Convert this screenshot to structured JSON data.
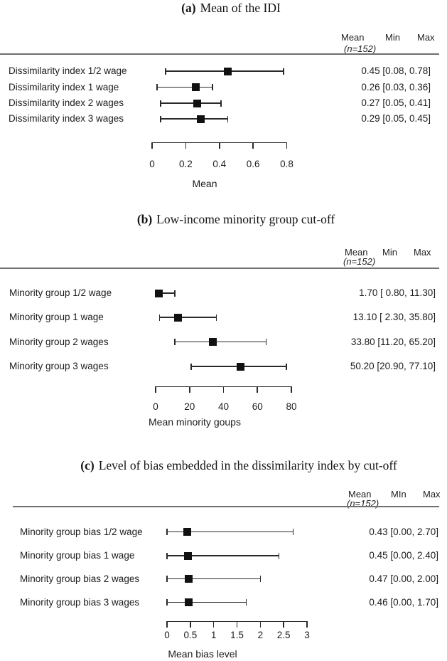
{
  "figure": {
    "background": "#ffffff",
    "text_color": "#1a1a1a",
    "marker_color": "#111111",
    "rule_color": "#6f6f6f"
  },
  "chart_data": [
    {
      "type": "forest",
      "panel_letter": "(a)",
      "title": "Mean of the IDI",
      "columns": {
        "mean": "Mean",
        "n": "(n=152)",
        "min": "Min",
        "max": "Max"
      },
      "xlabel": "Mean",
      "xlim": [
        0,
        0.8
      ],
      "tick_values": [
        0,
        0.2,
        0.4,
        0.6,
        0.8
      ],
      "tick_labels": [
        "0",
        "0.2",
        "0.4",
        "0.6",
        "0.8"
      ],
      "rows": [
        {
          "label": "Dissimilarity index 1/2 wage",
          "mean": 0.45,
          "min": 0.08,
          "max": 0.78,
          "display": "0.45 [0.08, 0.78]"
        },
        {
          "label": "Dissimilarity index 1 wage",
          "mean": 0.26,
          "min": 0.03,
          "max": 0.36,
          "display": "0.26 [0.03, 0.36]"
        },
        {
          "label": "Dissimilarity index 2 wages",
          "mean": 0.27,
          "min": 0.05,
          "max": 0.41,
          "display": "0.27 [0.05, 0.41]"
        },
        {
          "label": "Dissimilarity index 3 wages",
          "mean": 0.29,
          "min": 0.05,
          "max": 0.45,
          "display": "0.29 [0.05, 0.45]"
        }
      ]
    },
    {
      "type": "forest",
      "panel_letter": "(b)",
      "title": "Low-income minority group cut-off",
      "columns": {
        "mean": "Mean",
        "n": "(n=152)",
        "min": "Min",
        "max": "Max"
      },
      "xlabel": "Mean minority goups",
      "xlim": [
        0,
        80
      ],
      "tick_values": [
        0,
        20,
        40,
        60,
        80
      ],
      "tick_labels": [
        "0",
        "20",
        "40",
        "60",
        "80"
      ],
      "rows": [
        {
          "label": "Minority group 1/2 wage",
          "mean": 1.7,
          "min": 0.8,
          "max": 11.3,
          "display": "1.70 [ 0.80, 11.30]"
        },
        {
          "label": "Minority group 1 wage",
          "mean": 13.1,
          "min": 2.3,
          "max": 35.8,
          "display": "13.10 [ 2.30, 35.80]"
        },
        {
          "label": "Minority group 2 wages",
          "mean": 33.8,
          "min": 11.2,
          "max": 65.2,
          "display": "33.80 [11.20, 65.20]"
        },
        {
          "label": "Minority group 3 wages",
          "mean": 50.2,
          "min": 20.9,
          "max": 77.1,
          "display": "50.20 [20.90, 77.10]"
        }
      ]
    },
    {
      "type": "forest",
      "panel_letter": "(c)",
      "title": "Level of bias embedded in the dissimilarity index by cut-off",
      "columns": {
        "mean": "Mean",
        "n": "(n=152)",
        "min": "MIn",
        "max": "Max"
      },
      "xlabel": "Mean bias level",
      "xlim": [
        0,
        3
      ],
      "tick_values": [
        0,
        0.5,
        1,
        1.5,
        2,
        2.5,
        3
      ],
      "tick_labels": [
        "0",
        "0.5",
        "1",
        "1.5",
        "2",
        "2.5",
        "3"
      ],
      "rows": [
        {
          "label": "Minority group bias 1/2 wage",
          "mean": 0.43,
          "min": 0.0,
          "max": 2.7,
          "display": "0.43 [0.00, 2.70]"
        },
        {
          "label": "Minority group bias 1 wage",
          "mean": 0.45,
          "min": 0.0,
          "max": 2.4,
          "display": "0.45 [0.00, 2.40]"
        },
        {
          "label": "Minority group bias 2 wages",
          "mean": 0.47,
          "min": 0.0,
          "max": 2.0,
          "display": "0.47 [0.00, 2.00]"
        },
        {
          "label": "Minority group bias 3 wages",
          "mean": 0.46,
          "min": 0.0,
          "max": 1.7,
          "display": "0.46 [0.00, 1.70]"
        }
      ]
    }
  ]
}
